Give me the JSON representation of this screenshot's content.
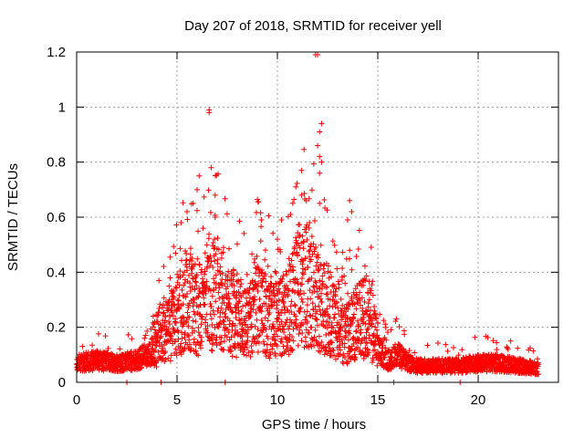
{
  "chart_data": {
    "type": "scatter",
    "title": "Day 207 of 2018, SRMTID for receiver yell",
    "xlabel": "GPS time / hours",
    "ylabel": "SRMTID / TECUs",
    "xlim": [
      0,
      24
    ],
    "ylim": [
      0,
      1.2
    ],
    "xticks": [
      0,
      5,
      10,
      15,
      20
    ],
    "xtick_labels": [
      "0",
      "5",
      "10",
      "15",
      "20"
    ],
    "yticks": [
      0,
      0.2,
      0.4,
      0.6,
      0.8,
      1.0,
      1.2
    ],
    "ytick_labels": [
      "0",
      "0.2",
      "0.4",
      "0.6",
      "0.8",
      "1",
      "1.2"
    ],
    "grid": true,
    "marker": "+",
    "color": "#ff0000",
    "series": [
      {
        "name": "SRMTID",
        "profile_x": [
          0,
          1,
          2,
          3,
          3.7,
          4.2,
          4.6,
          5.0,
          5.5,
          6.0,
          6.5,
          7.0,
          7.5,
          8.0,
          8.5,
          9.0,
          9.5,
          10.0,
          10.5,
          11.0,
          11.5,
          12.0,
          12.5,
          13.0,
          13.5,
          14.0,
          14.5,
          15.0,
          15.5,
          16.0,
          16.5,
          17,
          18,
          19,
          20,
          21,
          22,
          23
        ],
        "profile_y": [
          0.07,
          0.08,
          0.07,
          0.08,
          0.11,
          0.16,
          0.17,
          0.22,
          0.28,
          0.24,
          0.26,
          0.3,
          0.24,
          0.22,
          0.2,
          0.24,
          0.22,
          0.2,
          0.24,
          0.3,
          0.32,
          0.28,
          0.24,
          0.18,
          0.16,
          0.2,
          0.22,
          0.12,
          0.08,
          0.1,
          0.07,
          0.06,
          0.06,
          0.06,
          0.07,
          0.07,
          0.06,
          0.05
        ],
        "outliers": [
          {
            "x": 11.9,
            "y": 1.19
          },
          {
            "x": 12.0,
            "y": 1.19
          },
          {
            "x": 6.6,
            "y": 0.99
          },
          {
            "x": 6.6,
            "y": 0.98
          },
          {
            "x": 12.2,
            "y": 0.94
          },
          {
            "x": 12.1,
            "y": 0.91
          },
          {
            "x": 12.0,
            "y": 0.86
          },
          {
            "x": 12.1,
            "y": 0.82
          },
          {
            "x": 12.2,
            "y": 0.8
          },
          {
            "x": 6.7,
            "y": 0.78
          },
          {
            "x": 11.2,
            "y": 0.77
          },
          {
            "x": 12.1,
            "y": 0.76
          },
          {
            "x": 6.1,
            "y": 0.75
          },
          {
            "x": 6.0,
            "y": 0.7
          },
          {
            "x": 6.9,
            "y": 0.68
          },
          {
            "x": 11.2,
            "y": 0.68
          },
          {
            "x": 13.6,
            "y": 0.66
          },
          {
            "x": 5.8,
            "y": 0.65
          },
          {
            "x": 12.1,
            "y": 0.65
          },
          {
            "x": 13.7,
            "y": 0.62
          },
          {
            "x": 5.5,
            "y": 0.62
          },
          {
            "x": 6.9,
            "y": 0.6
          },
          {
            "x": 9.2,
            "y": 0.59
          },
          {
            "x": 10.2,
            "y": 0.59
          },
          {
            "x": 13.5,
            "y": 0.59
          },
          {
            "x": 11.6,
            "y": 0.58
          },
          {
            "x": 5.2,
            "y": 0.58
          },
          {
            "x": 6.3,
            "y": 0.56
          },
          {
            "x": 10.0,
            "y": 0.52
          },
          {
            "x": 13.6,
            "y": 0.48
          },
          {
            "x": 6.4,
            "y": 0.47
          },
          {
            "x": 11.0,
            "y": 0.46
          }
        ],
        "low_points": [
          {
            "x": 2.5,
            "y": 0.0
          },
          {
            "x": 4.2,
            "y": 0.0
          },
          {
            "x": 7.4,
            "y": 0.0
          },
          {
            "x": 15.8,
            "y": 0.0
          },
          {
            "x": 19.1,
            "y": 0.0
          }
        ]
      }
    ]
  }
}
